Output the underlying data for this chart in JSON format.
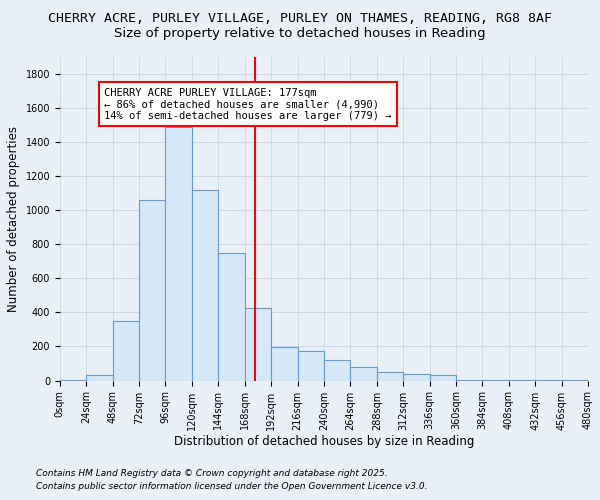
{
  "title1": "CHERRY ACRE, PURLEY VILLAGE, PURLEY ON THAMES, READING, RG8 8AF",
  "title2": "Size of property relative to detached houses in Reading",
  "xlabel": "Distribution of detached houses by size in Reading",
  "ylabel": "Number of detached properties",
  "bar_color": "#d6e8f7",
  "bar_edge_color": "#6699cc",
  "bg_color": "#eaf0f8",
  "property_line_x": 177,
  "property_line_color": "red",
  "annotation_text": "CHERRY ACRE PURLEY VILLAGE: 177sqm\n← 86% of detached houses are smaller (4,990)\n14% of semi-detached houses are larger (779) →",
  "annotation_box_color": "white",
  "annotation_box_edge": "red",
  "footnote1": "Contains HM Land Registry data © Crown copyright and database right 2025.",
  "footnote2": "Contains public sector information licensed under the Open Government Licence v3.0.",
  "bin_edges": [
    0,
    24,
    48,
    72,
    96,
    120,
    144,
    168,
    192,
    216,
    240,
    264,
    288,
    312,
    336,
    360,
    384,
    408,
    432,
    456,
    480
  ],
  "counts": [
    5,
    30,
    350,
    1060,
    1490,
    1120,
    750,
    425,
    195,
    175,
    120,
    80,
    50,
    40,
    30,
    5,
    5,
    5,
    5,
    3
  ],
  "ylim": [
    0,
    1900
  ],
  "yticks": [
    0,
    200,
    400,
    600,
    800,
    1000,
    1200,
    1400,
    1600,
    1800
  ],
  "grid_color": "#c8d4e8",
  "title_fontsize": 9.5,
  "subtitle_fontsize": 9.5,
  "axis_label_fontsize": 8.5,
  "tick_fontsize": 7,
  "footnote_fontsize": 6.5,
  "annotation_fontsize": 7.5
}
